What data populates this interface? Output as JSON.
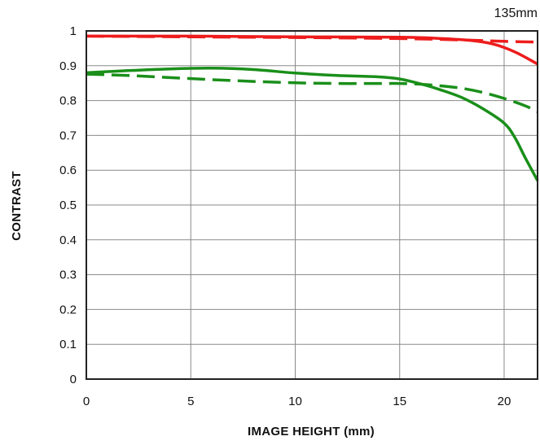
{
  "chart_data": {
    "type": "line",
    "title": "135mm",
    "xlabel": "IMAGE HEIGHT (mm)",
    "ylabel": "CONTRAST",
    "xlim": [
      0,
      21.6
    ],
    "ylim": [
      0,
      1
    ],
    "x_ticks": [
      0,
      5,
      10,
      15,
      20
    ],
    "y_ticks": [
      0,
      0.1,
      0.2,
      0.3,
      0.4,
      0.5,
      0.6,
      0.7,
      0.8,
      0.9,
      1
    ],
    "x_tick_labels": [
      "0",
      "5",
      "10",
      "15",
      "20"
    ],
    "y_tick_labels": [
      "0",
      "0.1",
      "0.2",
      "0.3",
      "0.4",
      "0.5",
      "0.6",
      "0.7",
      "0.8",
      "0.9",
      "1"
    ],
    "grid": true,
    "legend": "none",
    "series": [
      {
        "color": "#ee1c1c",
        "dash": "solid",
        "x": [
          0,
          5,
          10,
          15,
          17,
          18.5,
          19.5,
          20.5,
          21.6
        ],
        "y": [
          0.985,
          0.985,
          0.983,
          0.982,
          0.978,
          0.972,
          0.962,
          0.94,
          0.905
        ]
      },
      {
        "color": "#ee1c1c",
        "dash": "dashed",
        "x": [
          0,
          5,
          10,
          15,
          18,
          20,
          21.6
        ],
        "y": [
          0.985,
          0.983,
          0.981,
          0.978,
          0.974,
          0.97,
          0.968
        ]
      },
      {
        "color": "#1a8f1a",
        "dash": "solid",
        "x": [
          0,
          2,
          4,
          6,
          8,
          10,
          12,
          14,
          15,
          16,
          17,
          18,
          19,
          20,
          20.5,
          21,
          21.6
        ],
        "y": [
          0.88,
          0.886,
          0.891,
          0.893,
          0.889,
          0.879,
          0.872,
          0.868,
          0.862,
          0.848,
          0.83,
          0.808,
          0.776,
          0.735,
          0.695,
          0.637,
          0.57
        ]
      },
      {
        "color": "#1a8f1a",
        "dash": "dashed",
        "x": [
          0,
          2,
          4,
          6,
          8,
          10,
          12,
          14,
          15,
          16,
          17,
          18,
          19,
          20,
          21,
          21.6
        ],
        "y": [
          0.876,
          0.872,
          0.866,
          0.86,
          0.855,
          0.851,
          0.849,
          0.849,
          0.849,
          0.847,
          0.842,
          0.835,
          0.823,
          0.806,
          0.785,
          0.768
        ]
      }
    ]
  }
}
